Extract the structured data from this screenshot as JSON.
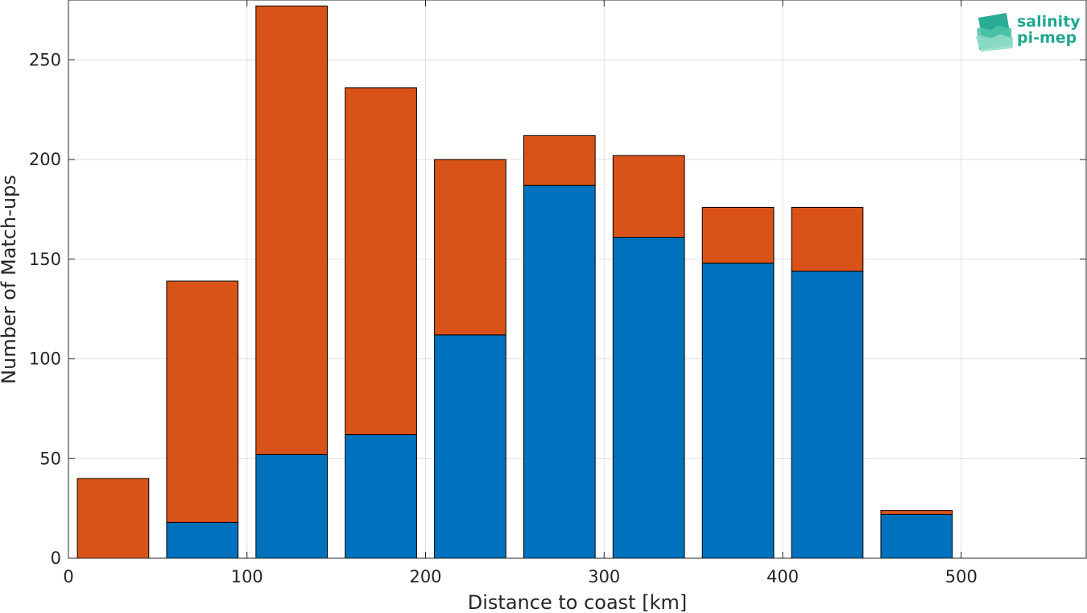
{
  "chart_data": {
    "type": "bar",
    "stacked": true,
    "xlabel": "Distance to coast [km]",
    "ylabel": "Number of Match-ups",
    "xlim": [
      0,
      570
    ],
    "ylim": [
      0,
      280
    ],
    "xticks": [
      0,
      100,
      200,
      300,
      400,
      500
    ],
    "yticks": [
      0,
      50,
      100,
      150,
      200,
      250
    ],
    "grid": true,
    "bin_centers": [
      25,
      75,
      125,
      175,
      225,
      275,
      325,
      375,
      425,
      475,
      525
    ],
    "bar_width": 40,
    "series": [
      {
        "color": "#0072bd",
        "values": [
          0,
          18,
          52,
          62,
          112,
          187,
          161,
          148,
          144,
          22,
          0
        ]
      },
      {
        "color": "#d95319",
        "values": [
          40,
          121,
          225,
          174,
          88,
          25,
          41,
          28,
          32,
          2,
          0
        ]
      }
    ]
  },
  "logo": {
    "line1": "salinity",
    "line2": "pi-mep",
    "color": "#1fa88f"
  }
}
